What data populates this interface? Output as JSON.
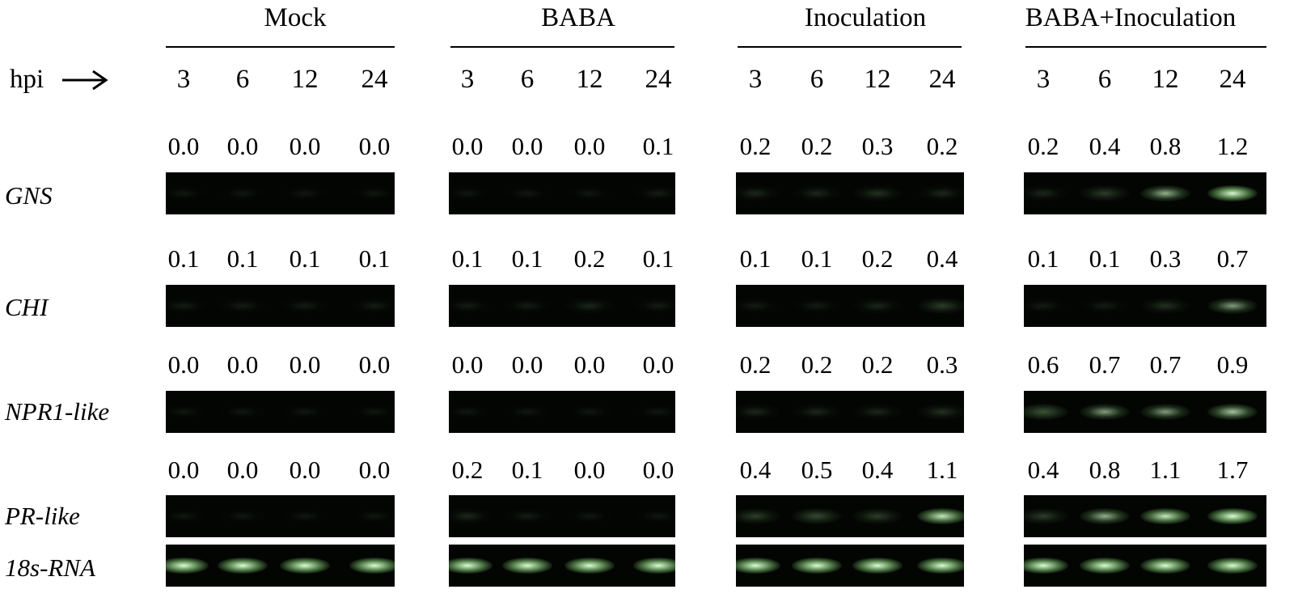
{
  "groups": [
    {
      "name": "Mock"
    },
    {
      "name": "BABA"
    },
    {
      "name": "Inoculation"
    },
    {
      "name": "BABA+Inoculation"
    }
  ],
  "time_label": "hpi",
  "timepoints": [
    "3",
    "6",
    "12",
    "24"
  ],
  "genes": [
    {
      "name": "GNS",
      "values": [
        [
          "0.0",
          "0.0",
          "0.0",
          "0.0"
        ],
        [
          "0.0",
          "0.0",
          "0.0",
          "0.1"
        ],
        [
          "0.2",
          "0.2",
          "0.3",
          "0.2"
        ],
        [
          "0.2",
          "0.4",
          "0.8",
          "1.2"
        ]
      ]
    },
    {
      "name": "CHI",
      "values": [
        [
          "0.1",
          "0.1",
          "0.1",
          "0.1"
        ],
        [
          "0.1",
          "0.1",
          "0.2",
          "0.1"
        ],
        [
          "0.1",
          "0.1",
          "0.2",
          "0.4"
        ],
        [
          "0.1",
          "0.1",
          "0.3",
          "0.7"
        ]
      ]
    },
    {
      "name": "NPR1-like",
      "values": [
        [
          "0.0",
          "0.0",
          "0.0",
          "0.0"
        ],
        [
          "0.0",
          "0.0",
          "0.0",
          "0.0"
        ],
        [
          "0.2",
          "0.2",
          "0.2",
          "0.3"
        ],
        [
          "0.6",
          "0.7",
          "0.7",
          "0.9"
        ]
      ]
    },
    {
      "name": "PR-like",
      "values": [
        [
          "0.0",
          "0.0",
          "0.0",
          "0.0"
        ],
        [
          "0.2",
          "0.1",
          "0.0",
          "0.0"
        ],
        [
          "0.4",
          "0.5",
          "0.4",
          "1.1"
        ],
        [
          "0.4",
          "0.8",
          "1.1",
          "1.7"
        ]
      ]
    },
    {
      "name": "18s-RNA",
      "values": null
    }
  ],
  "band_color": "#d8ffd0",
  "gel_background": "#030503"
}
